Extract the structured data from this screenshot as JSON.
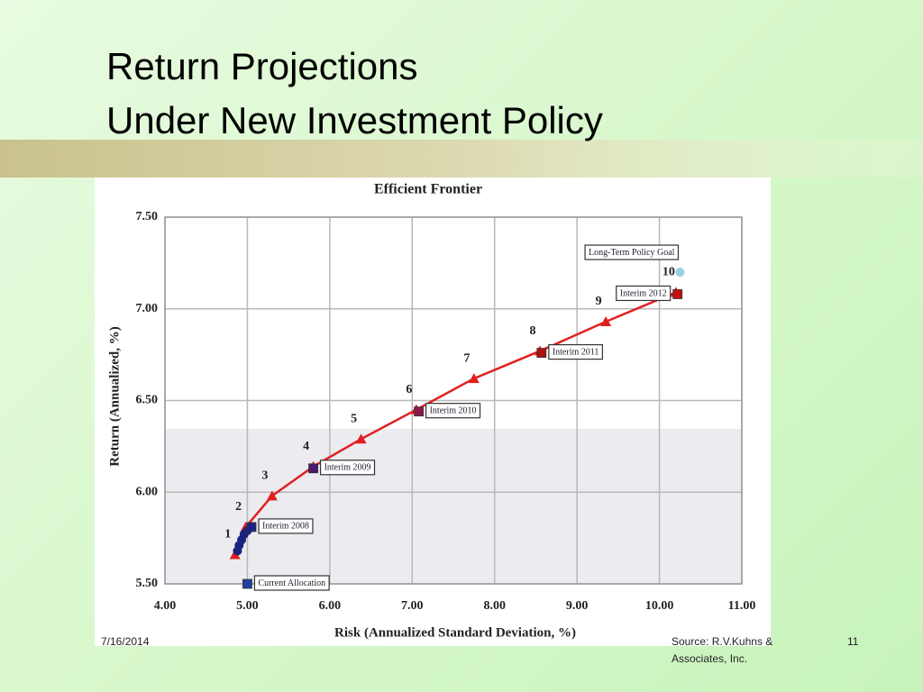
{
  "slide": {
    "title_line1": "Return Projections",
    "title_line2": "Under New Investment Policy",
    "date": "7/16/2014",
    "source_line1": "Source: R.V.Kuhns &",
    "source_line2": "Associates, Inc.",
    "page_number": "11"
  },
  "chart_data": {
    "type": "line",
    "title": "Efficient Frontier",
    "x_label": "Risk (Annualized Standard Deviation, %)",
    "y_label": "Return (Annualized, %)",
    "xlim": [
      4,
      11
    ],
    "ylim": [
      5.5,
      7.5
    ],
    "xticks": [
      {
        "value": 4,
        "label": "4.00"
      },
      {
        "value": 5,
        "label": "5.00"
      },
      {
        "value": 6,
        "label": "6.00"
      },
      {
        "value": 7,
        "label": "7.00"
      },
      {
        "value": 8,
        "label": "8.00"
      },
      {
        "value": 9,
        "label": "9.00"
      },
      {
        "value": 10,
        "label": "10.00"
      },
      {
        "value": 11,
        "label": "11.00"
      }
    ],
    "yticks": [
      {
        "value": 5.5,
        "label": "5.50"
      },
      {
        "value": 6,
        "label": "6.00"
      },
      {
        "value": 6.5,
        "label": "6.50"
      },
      {
        "value": 7,
        "label": "7.00"
      },
      {
        "value": 7.5,
        "label": "7.50"
      }
    ],
    "grid": true,
    "series": [
      {
        "color": "#e02020",
        "marker": "triangle",
        "x": [
          4.85,
          4.98,
          5.3,
          5.8,
          6.38,
          7.05,
          7.75,
          8.55,
          9.35,
          10.2
        ],
        "values": [
          5.66,
          5.81,
          5.98,
          6.14,
          6.29,
          6.45,
          6.62,
          6.77,
          6.93,
          7.09
        ],
        "point_labels": [
          "1",
          "2",
          "3",
          "4",
          "5",
          "6",
          "7",
          "8",
          "9",
          "10"
        ]
      },
      {
        "color": "#1a237e",
        "marker": "circle",
        "x": [
          4.88,
          4.9,
          4.93,
          4.96,
          5.0
        ],
        "values": [
          5.68,
          5.71,
          5.74,
          5.77,
          5.79
        ]
      }
    ],
    "annotations": [
      {
        "text": "Current Allocation",
        "x": 5.0,
        "y": 5.5,
        "color": "#1f3fa0",
        "marker": "square"
      },
      {
        "text": "Interim 2008",
        "x": 5.05,
        "y": 5.81,
        "color": "#1a237e",
        "marker": "square"
      },
      {
        "text": "Interim 2009",
        "x": 5.8,
        "y": 6.13,
        "color": "#4a1a6e",
        "marker": "square"
      },
      {
        "text": "Interim 2010",
        "x": 7.08,
        "y": 6.44,
        "color": "#8b1a4a",
        "marker": "square"
      },
      {
        "text": "Interim 2011",
        "x": 8.57,
        "y": 6.76,
        "color": "#b01010",
        "marker": "square"
      },
      {
        "text": "Interim 2012",
        "x": 10.22,
        "y": 7.08,
        "color": "#c01010",
        "marker": "square"
      },
      {
        "text": "Long-Term Policy Goal",
        "x": 10.25,
        "y": 7.2,
        "color": "#9ad0e0",
        "marker": "circle"
      }
    ]
  }
}
